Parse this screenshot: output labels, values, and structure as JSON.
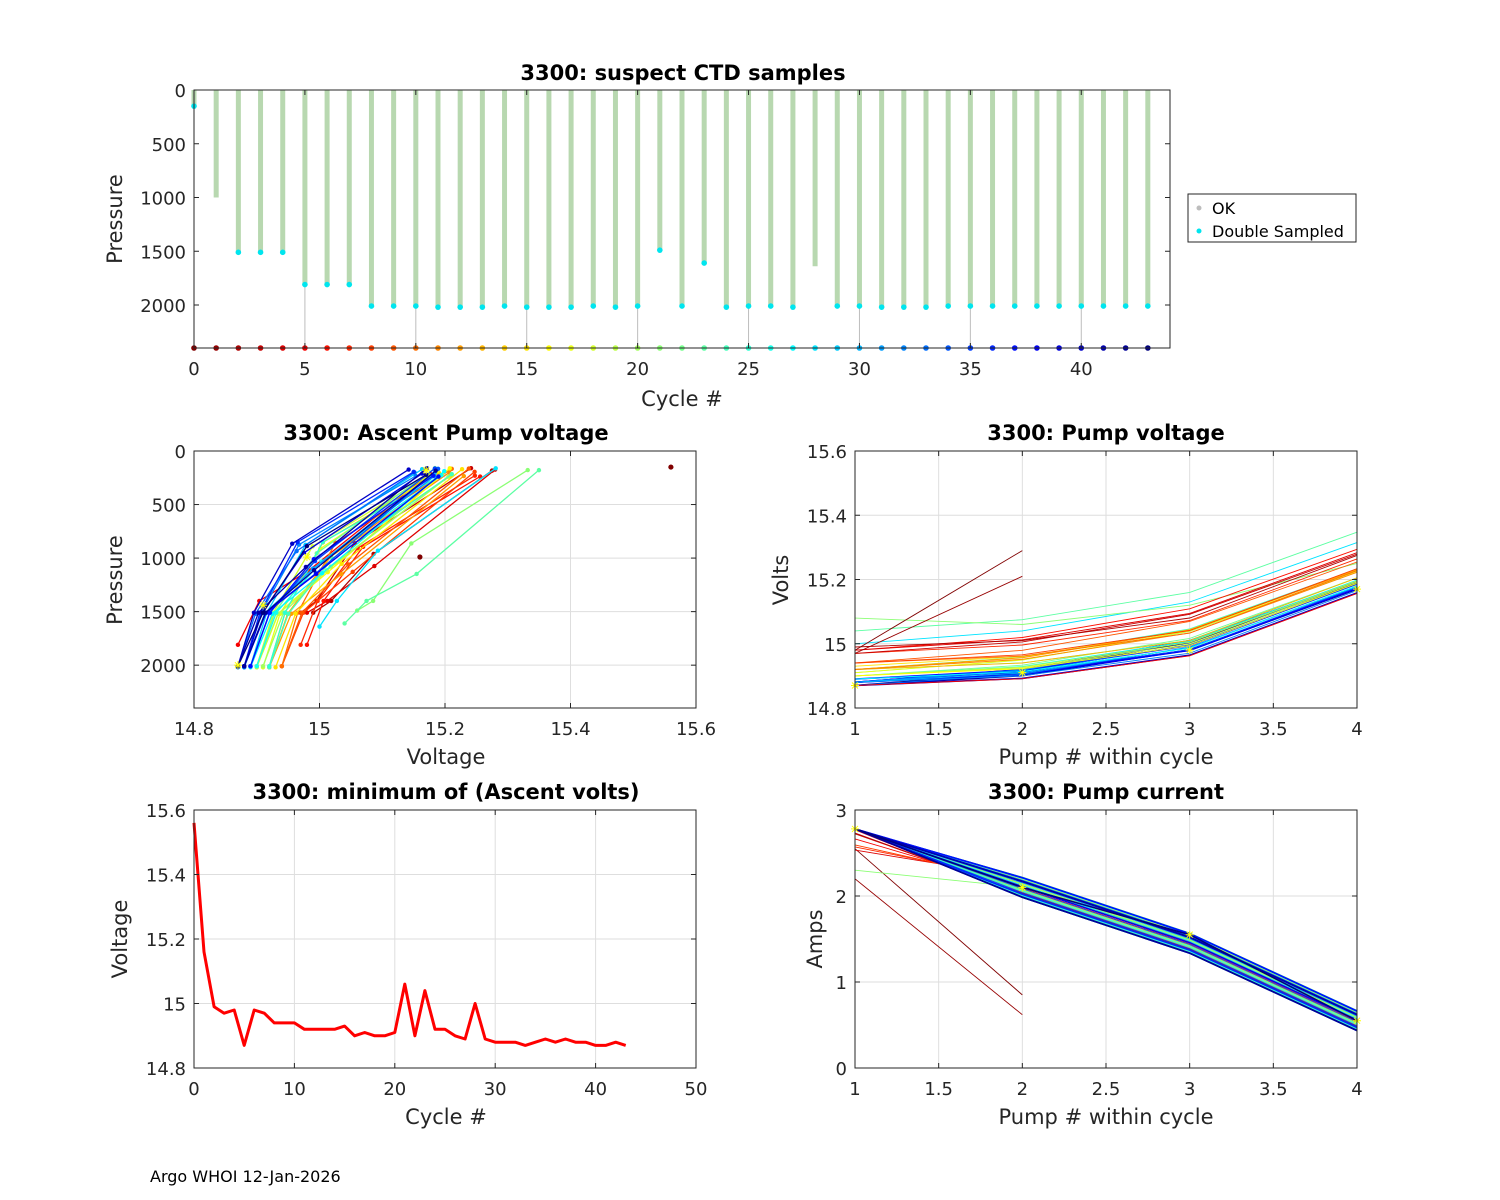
{
  "footer": "Argo WHOI 12-Jan-2026",
  "float_id": "3300",
  "chart_data": [
    {
      "id": "samples",
      "type": "scatter",
      "title": "3300: suspect CTD samples",
      "xlabel": "Cycle #",
      "ylabel": "Pressure",
      "xlim": [
        0,
        44
      ],
      "ylim": [
        0,
        2400
      ],
      "y_reversed": true,
      "xticks": [
        0,
        5,
        10,
        15,
        20,
        25,
        30,
        35,
        40
      ],
      "yticks": [
        0,
        500,
        1000,
        1500,
        2000
      ],
      "grid": false,
      "legend": {
        "position": "outside-right",
        "entries": [
          "OK",
          "Double Sampled"
        ]
      },
      "colors": {
        "ok": "#b8d8b0",
        "double_sampled": "#00e5ee"
      },
      "cycles": [
        0,
        1,
        2,
        3,
        4,
        5,
        6,
        7,
        8,
        9,
        10,
        11,
        12,
        13,
        14,
        15,
        16,
        17,
        18,
        19,
        20,
        21,
        22,
        23,
        24,
        25,
        26,
        27,
        28,
        29,
        30,
        31,
        32,
        33,
        34,
        35,
        36,
        37,
        38,
        39,
        40,
        41,
        42,
        43
      ],
      "max_pressure": [
        150,
        1000,
        1510,
        1510,
        1510,
        1810,
        1810,
        1810,
        2010,
        2010,
        2010,
        2020,
        2020,
        2020,
        2010,
        2020,
        2020,
        2020,
        2010,
        2020,
        2010,
        1490,
        2010,
        1610,
        2020,
        2010,
        2010,
        2020,
        1640,
        2010,
        2010,
        2020,
        2020,
        2020,
        2010,
        2010,
        2010,
        2010,
        2010,
        2010,
        2010,
        2010,
        2010,
        2010
      ],
      "double_sampled": [
        true,
        false,
        true,
        true,
        true,
        true,
        true,
        true,
        true,
        true,
        true,
        true,
        true,
        true,
        true,
        true,
        true,
        true,
        true,
        true,
        true,
        true,
        true,
        true,
        true,
        true,
        true,
        true,
        false,
        true,
        true,
        true,
        true,
        true,
        true,
        true,
        true,
        true,
        true,
        true,
        true,
        true,
        true,
        true
      ],
      "marker_pressure": 2400
    },
    {
      "id": "ascent",
      "type": "line",
      "title": "3300: Ascent Pump voltage",
      "xlabel": "Voltage",
      "ylabel": "Pressure",
      "xlim": [
        14.8,
        15.6
      ],
      "ylim": [
        0,
        2400
      ],
      "y_reversed": true,
      "xticks": [
        14.8,
        15,
        15.2,
        15.4,
        15.6
      ],
      "xtick_labels": [
        "14.8",
        "15",
        "15.2",
        "15.4",
        "15.6"
      ],
      "yticks": [
        0,
        500,
        1000,
        1500,
        2000
      ],
      "grid": true,
      "pressure_levels": [
        2000,
        1500,
        1000,
        200
      ],
      "outliers": [
        {
          "voltage": 15.56,
          "pressure": 150,
          "cycle": 0
        },
        {
          "voltage": 15.16,
          "pressure": 990,
          "cycle": 1
        }
      ]
    },
    {
      "id": "pumpv",
      "type": "line",
      "title": "3300: Pump voltage",
      "xlabel": "Pump # within cycle",
      "ylabel": "Volts",
      "xlim": [
        1,
        4
      ],
      "ylim": [
        14.8,
        15.6
      ],
      "xticks": [
        1,
        1.5,
        2,
        2.5,
        3,
        3.5,
        4
      ],
      "xtick_labels": [
        "1",
        "1.5",
        "2",
        "2.5",
        "3",
        "3.5",
        "4"
      ],
      "yticks": [
        14.8,
        15,
        15.2,
        15.4,
        15.6
      ],
      "ytick_labels": [
        "14.8",
        "15",
        "15.2",
        "15.4",
        "15.6"
      ],
      "grid": true,
      "latest_cycle_values": [
        14.87,
        14.91,
        14.98,
        15.17
      ]
    },
    {
      "id": "minvolts",
      "type": "line",
      "title": "3300: minimum of (Ascent volts)",
      "xlabel": "Cycle #",
      "ylabel": "Voltage",
      "xlim": [
        0,
        50
      ],
      "ylim": [
        14.8,
        15.6
      ],
      "xticks": [
        0,
        10,
        20,
        30,
        40,
        50
      ],
      "yticks": [
        14.8,
        15,
        15.2,
        15.4,
        15.6
      ],
      "ytick_labels": [
        "14.8",
        "15",
        "15.2",
        "15.4",
        "15.6"
      ],
      "grid": true,
      "color": "#ff0000",
      "x": [
        0,
        1,
        2,
        3,
        4,
        5,
        6,
        7,
        8,
        9,
        10,
        11,
        12,
        13,
        14,
        15,
        16,
        17,
        18,
        19,
        20,
        21,
        22,
        23,
        24,
        25,
        26,
        27,
        28,
        29,
        30,
        31,
        32,
        33,
        34,
        35,
        36,
        37,
        38,
        39,
        40,
        41,
        42,
        43
      ],
      "y": [
        15.56,
        15.16,
        14.99,
        14.97,
        14.98,
        14.87,
        14.98,
        14.97,
        14.94,
        14.94,
        14.94,
        14.92,
        14.92,
        14.92,
        14.92,
        14.93,
        14.9,
        14.91,
        14.9,
        14.9,
        14.91,
        15.06,
        14.9,
        15.04,
        14.92,
        14.92,
        14.9,
        14.89,
        15.0,
        14.89,
        14.88,
        14.88,
        14.88,
        14.87,
        14.88,
        14.89,
        14.88,
        14.89,
        14.88,
        14.88,
        14.87,
        14.87,
        14.88,
        14.87
      ]
    },
    {
      "id": "pumpc",
      "type": "line",
      "title": "3300: Pump current",
      "xlabel": "Pump # within cycle",
      "ylabel": "Amps",
      "xlim": [
        1,
        4
      ],
      "ylim": [
        0,
        3
      ],
      "xticks": [
        1,
        1.5,
        2,
        2.5,
        3,
        3.5,
        4
      ],
      "xtick_labels": [
        "1",
        "1.5",
        "2",
        "2.5",
        "3",
        "3.5",
        "4"
      ],
      "yticks": [
        0,
        1,
        2,
        3
      ],
      "grid": true,
      "latest_cycle_values": [
        2.78,
        2.1,
        1.55,
        0.55
      ]
    }
  ]
}
